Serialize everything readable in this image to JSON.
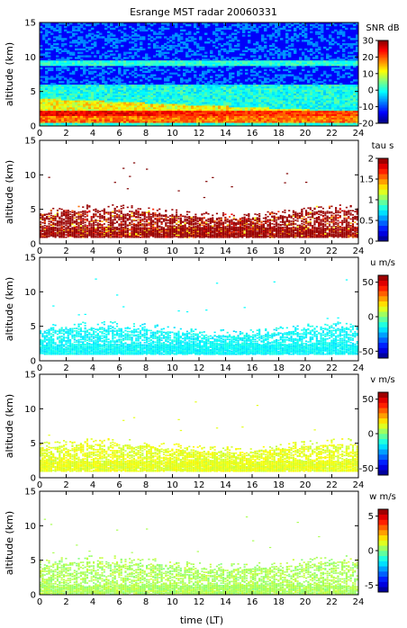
{
  "chart_data": {
    "title": "Esrange MST radar 20060331",
    "xlabel": "time (LT)",
    "xlim": [
      0,
      24
    ],
    "xticks": [
      0,
      2,
      4,
      6,
      8,
      10,
      12,
      14,
      16,
      18,
      20,
      22,
      24
    ],
    "panels": [
      {
        "type": "heatmap",
        "ylabel": "altitude (km)",
        "ylim": [
          0,
          15
        ],
        "yticks": [
          0,
          5,
          10,
          15
        ],
        "colorbar": {
          "label": "SNR dB",
          "range": [
            -20,
            30
          ],
          "ticks": [
            30,
            20,
            10,
            0,
            -10,
            -20
          ]
        },
        "description_values": {
          "fill": "full",
          "low_layer_strong_snr_below_km": 3,
          "strong_band_km": [
            1,
            4
          ]
        }
      },
      {
        "type": "heatmap",
        "ylabel": "altitude (km)",
        "ylim": [
          0,
          15
        ],
        "yticks": [
          0,
          5,
          10,
          15
        ],
        "colorbar": {
          "label": "tau s",
          "range": [
            0,
            2
          ],
          "ticks": [
            2,
            1.5,
            1,
            0.5,
            0
          ]
        },
        "description_values": {
          "data_band_km": [
            1,
            5
          ],
          "dominant_value_s": 2
        }
      },
      {
        "type": "heatmap",
        "ylabel": "altitude (km)",
        "ylim": [
          0,
          15
        ],
        "yticks": [
          0,
          5,
          10,
          15
        ],
        "colorbar": {
          "label": "u m/s",
          "range": [
            -60,
            60
          ],
          "ticks": [
            50,
            0,
            -50
          ]
        },
        "description_values": {
          "data_band_km": [
            1,
            5
          ],
          "dominant_value_ms": -15
        }
      },
      {
        "type": "heatmap",
        "ylabel": "altitude (km)",
        "ylim": [
          0,
          15
        ],
        "yticks": [
          0,
          5,
          10,
          15
        ],
        "colorbar": {
          "label": "v m/s",
          "range": [
            -60,
            60
          ],
          "ticks": [
            50,
            0,
            -50
          ]
        },
        "description_values": {
          "data_band_km": [
            1,
            5
          ],
          "dominant_value_ms": 12
        }
      },
      {
        "type": "heatmap",
        "ylabel": "altitude (km)",
        "ylim": [
          0,
          15
        ],
        "yticks": [
          0,
          5,
          10,
          15
        ],
        "colorbar": {
          "label": "w m/s",
          "range": [
            -6,
            6
          ],
          "ticks": [
            5,
            0,
            -5
          ]
        },
        "description_values": {
          "data_band_km": [
            0,
            5
          ],
          "dominant_value_ms": 0.5
        }
      }
    ]
  }
}
